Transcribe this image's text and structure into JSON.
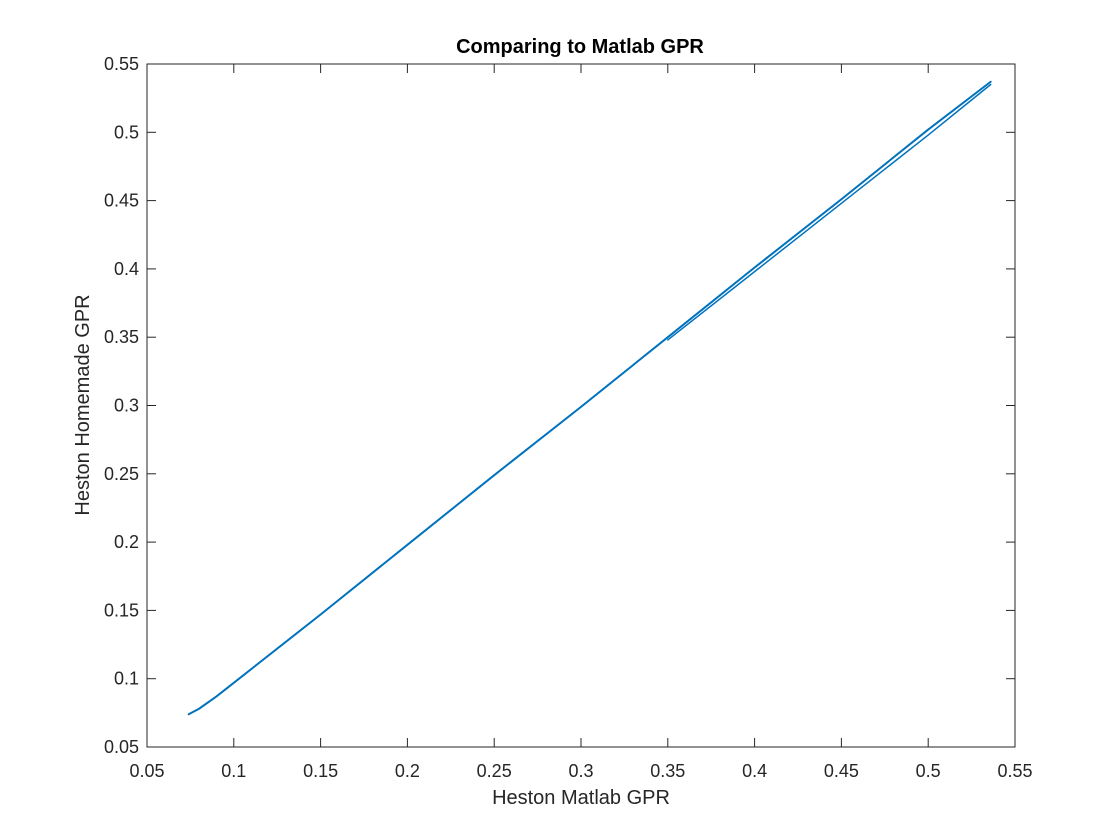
{
  "chart_data": {
    "type": "line",
    "title": "Comparing to Matlab GPR",
    "xlabel": "Heston Matlab GPR",
    "ylabel": "Heston Homemade GPR",
    "xlim": [
      0.05,
      0.55
    ],
    "ylim": [
      0.05,
      0.55
    ],
    "xticks": [
      "0.05",
      "0.1",
      "0.15",
      "0.2",
      "0.25",
      "0.3",
      "0.35",
      "0.4",
      "0.45",
      "0.5",
      "0.55"
    ],
    "yticks": [
      "0.05",
      "0.1",
      "0.15",
      "0.2",
      "0.25",
      "0.3",
      "0.35",
      "0.4",
      "0.45",
      "0.5",
      "0.55"
    ],
    "grid": false,
    "box": true,
    "series": [
      {
        "color": "#0072BD",
        "x": [
          0.074,
          0.08,
          0.09,
          0.1,
          0.15,
          0.2,
          0.25,
          0.3,
          0.35,
          0.4,
          0.45,
          0.5,
          0.536
        ],
        "y": [
          0.074,
          0.078,
          0.087,
          0.097,
          0.147,
          0.198,
          0.249,
          0.299,
          0.35,
          0.401,
          0.451,
          0.502,
          0.537
        ]
      },
      {
        "color": "#0072BD",
        "x": [
          0.35,
          0.4,
          0.45,
          0.5,
          0.536
        ],
        "y": [
          0.348,
          0.398,
          0.448,
          0.498,
          0.535
        ]
      }
    ]
  }
}
